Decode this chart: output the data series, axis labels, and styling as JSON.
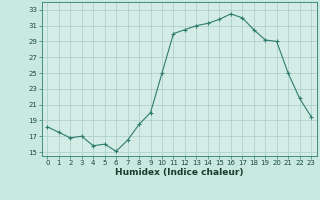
{
  "x": [
    0,
    1,
    2,
    3,
    4,
    5,
    6,
    7,
    8,
    9,
    10,
    11,
    12,
    13,
    14,
    15,
    16,
    17,
    18,
    19,
    20,
    21,
    22,
    23
  ],
  "y": [
    18.2,
    17.5,
    16.8,
    17.0,
    15.8,
    16.0,
    15.1,
    16.5,
    18.5,
    20.0,
    25.0,
    30.0,
    30.5,
    31.0,
    31.3,
    31.8,
    32.5,
    32.0,
    30.5,
    29.2,
    29.0,
    25.0,
    21.8,
    19.5
  ],
  "xlabel": "Humidex (Indice chaleur)",
  "ylim": [
    14.5,
    34.0
  ],
  "xlim": [
    -0.5,
    23.5
  ],
  "yticks": [
    15,
    17,
    19,
    21,
    23,
    25,
    27,
    29,
    31,
    33
  ],
  "xticks": [
    0,
    1,
    2,
    3,
    4,
    5,
    6,
    7,
    8,
    9,
    10,
    11,
    12,
    13,
    14,
    15,
    16,
    17,
    18,
    19,
    20,
    21,
    22,
    23
  ],
  "line_color": "#2e7d6e",
  "marker": "+",
  "markersize": 3,
  "linewidth": 0.8,
  "bg_color": "#c8e8e0",
  "grid_color": "#aaccc4",
  "axes_bg": "#d4ece6",
  "tick_label_color": "#1a4a3a",
  "xlabel_color": "#1a3a2a",
  "xlabel_fontsize": 6.5,
  "tick_fontsize": 5.0
}
